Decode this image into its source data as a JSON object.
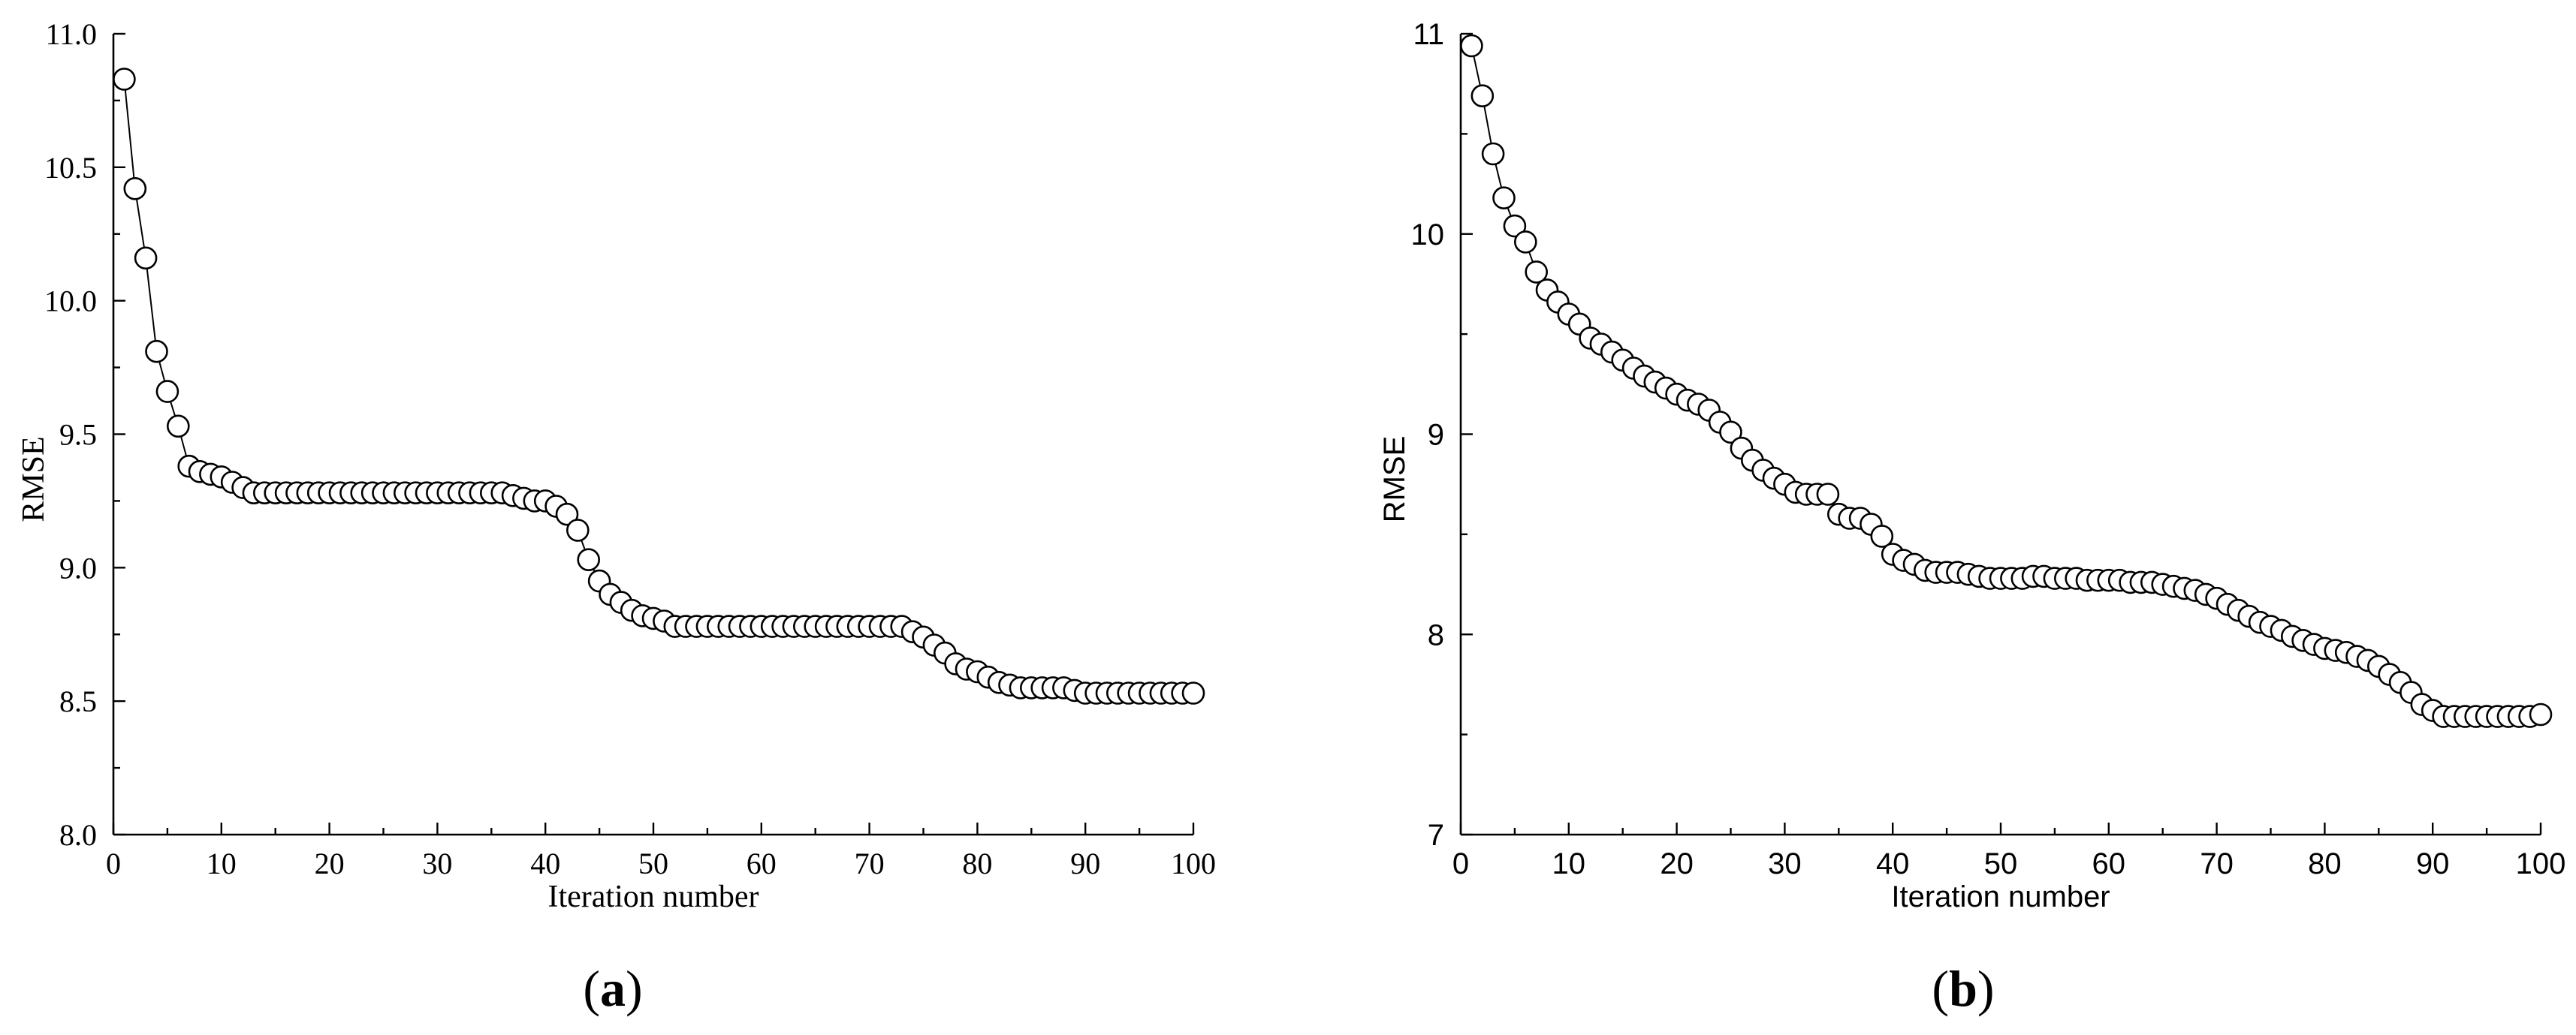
{
  "chart_data": [
    {
      "type": "line",
      "panel_label": "a",
      "xlabel": "Iteration number",
      "ylabel": "RMSE",
      "xlim": [
        0,
        100
      ],
      "ylim": [
        8.0,
        11.0
      ],
      "x_ticks": [
        "0",
        "10",
        "20",
        "30",
        "40",
        "50",
        "60",
        "70",
        "80",
        "90",
        "100"
      ],
      "y_ticks": [
        "8.0",
        "8.5",
        "9.0",
        "9.5",
        "10.0",
        "10.5",
        "11.0"
      ],
      "grid": false,
      "marker": "open-circle",
      "x": [
        1,
        2,
        3,
        4,
        5,
        6,
        7,
        8,
        9,
        10,
        11,
        12,
        13,
        14,
        15,
        16,
        17,
        18,
        19,
        20,
        21,
        22,
        23,
        24,
        25,
        26,
        27,
        28,
        29,
        30,
        31,
        32,
        33,
        34,
        35,
        36,
        37,
        38,
        39,
        40,
        41,
        42,
        43,
        44,
        45,
        46,
        47,
        48,
        49,
        50,
        51,
        52,
        53,
        54,
        55,
        56,
        57,
        58,
        59,
        60,
        61,
        62,
        63,
        64,
        65,
        66,
        67,
        68,
        69,
        70,
        71,
        72,
        73,
        74,
        75,
        76,
        77,
        78,
        79,
        80,
        81,
        82,
        83,
        84,
        85,
        86,
        87,
        88,
        89,
        90,
        91,
        92,
        93,
        94,
        95,
        96,
        97,
        98,
        99,
        100
      ],
      "values": [
        10.83,
        10.42,
        10.16,
        9.81,
        9.66,
        9.53,
        9.38,
        9.36,
        9.35,
        9.34,
        9.32,
        9.3,
        9.28,
        9.28,
        9.28,
        9.28,
        9.28,
        9.28,
        9.28,
        9.28,
        9.28,
        9.28,
        9.28,
        9.28,
        9.28,
        9.28,
        9.28,
        9.28,
        9.28,
        9.28,
        9.28,
        9.28,
        9.28,
        9.28,
        9.28,
        9.28,
        9.27,
        9.26,
        9.25,
        9.25,
        9.23,
        9.2,
        9.14,
        9.03,
        8.95,
        8.9,
        8.87,
        8.84,
        8.82,
        8.81,
        8.8,
        8.78,
        8.78,
        8.78,
        8.78,
        8.78,
        8.78,
        8.78,
        8.78,
        8.78,
        8.78,
        8.78,
        8.78,
        8.78,
        8.78,
        8.78,
        8.78,
        8.78,
        8.78,
        8.78,
        8.78,
        8.78,
        8.78,
        8.76,
        8.74,
        8.71,
        8.68,
        8.64,
        8.62,
        8.61,
        8.59,
        8.57,
        8.56,
        8.55,
        8.55,
        8.55,
        8.55,
        8.55,
        8.54,
        8.53,
        8.53,
        8.53,
        8.53,
        8.53,
        8.53,
        8.53,
        8.53,
        8.53,
        8.53,
        8.53
      ]
    },
    {
      "type": "line",
      "panel_label": "b",
      "xlabel": "Iteration number",
      "ylabel": "RMSE",
      "xlim": [
        0,
        100
      ],
      "ylim": [
        7,
        11
      ],
      "x_ticks": [
        "0",
        "10",
        "20",
        "30",
        "40",
        "50",
        "60",
        "70",
        "80",
        "90",
        "100"
      ],
      "y_ticks": [
        "7",
        "8",
        "9",
        "10",
        "11"
      ],
      "grid": false,
      "marker": "open-circle",
      "x": [
        1,
        2,
        3,
        4,
        5,
        6,
        7,
        8,
        9,
        10,
        11,
        12,
        13,
        14,
        15,
        16,
        17,
        18,
        19,
        20,
        21,
        22,
        23,
        24,
        25,
        26,
        27,
        28,
        29,
        30,
        31,
        32,
        33,
        34,
        35,
        36,
        37,
        38,
        39,
        40,
        41,
        42,
        43,
        44,
        45,
        46,
        47,
        48,
        49,
        50,
        51,
        52,
        53,
        54,
        55,
        56,
        57,
        58,
        59,
        60,
        61,
        62,
        63,
        64,
        65,
        66,
        67,
        68,
        69,
        70,
        71,
        72,
        73,
        74,
        75,
        76,
        77,
        78,
        79,
        80,
        81,
        82,
        83,
        84,
        85,
        86,
        87,
        88,
        89,
        90,
        91,
        92,
        93,
        94,
        95,
        96,
        97,
        98,
        99,
        100
      ],
      "values": [
        10.94,
        10.69,
        10.4,
        10.18,
        10.04,
        9.96,
        9.81,
        9.72,
        9.66,
        9.6,
        9.55,
        9.48,
        9.45,
        9.41,
        9.37,
        9.33,
        9.29,
        9.26,
        9.23,
        9.2,
        9.17,
        9.15,
        9.12,
        9.06,
        9.01,
        8.93,
        8.87,
        8.82,
        8.78,
        8.75,
        8.71,
        8.7,
        8.7,
        8.7,
        8.6,
        8.58,
        8.58,
        8.55,
        8.49,
        8.4,
        8.37,
        8.35,
        8.32,
        8.31,
        8.31,
        8.31,
        8.3,
        8.29,
        8.28,
        8.28,
        8.28,
        8.28,
        8.29,
        8.29,
        8.28,
        8.28,
        8.28,
        8.27,
        8.27,
        8.27,
        8.27,
        8.26,
        8.26,
        8.26,
        8.25,
        8.24,
        8.23,
        8.22,
        8.2,
        8.18,
        8.15,
        8.12,
        8.09,
        8.06,
        8.04,
        8.02,
        7.99,
        7.97,
        7.95,
        7.93,
        7.92,
        7.91,
        7.89,
        7.87,
        7.84,
        7.8,
        7.76,
        7.71,
        7.65,
        7.62,
        7.59,
        7.59,
        7.59,
        7.59,
        7.59,
        7.59,
        7.59,
        7.59,
        7.59,
        7.6
      ]
    }
  ]
}
